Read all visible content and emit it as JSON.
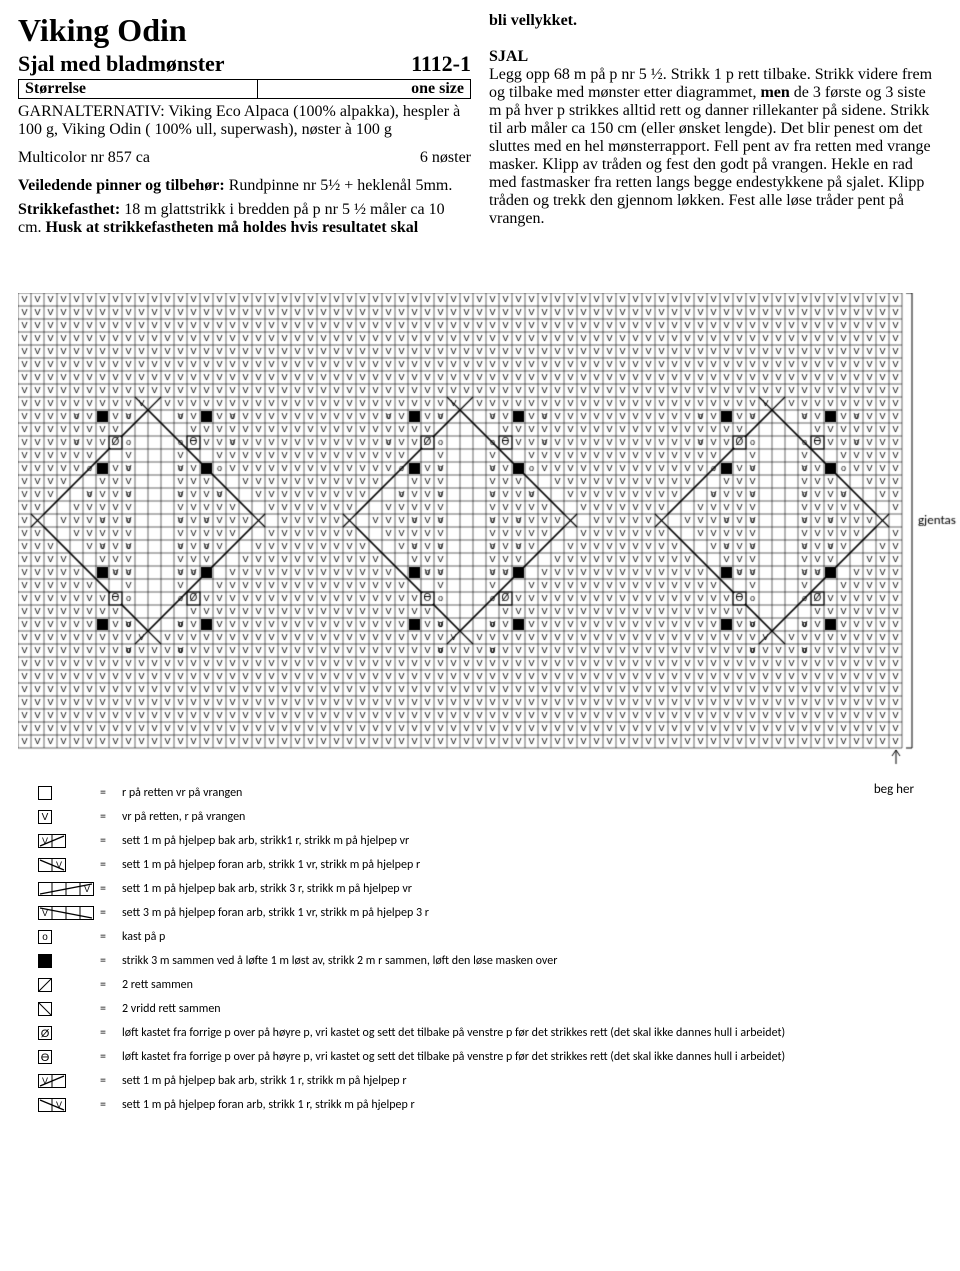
{
  "header": {
    "title": "Viking Odin",
    "subtitle": "Sjal med bladmønster",
    "pattern_no": "1112-1",
    "size_label": "Størrelse",
    "size_value": "one size",
    "garn": "GARNALTERNATIV: Viking Eco Alpaca (100% alpakka), hespler à 100 g, Viking Odin ( 100% ull, superwash), nøster à 100 g",
    "multicolor": "Multicolor nr 857 ca",
    "multicolor_qty": "6 nøster",
    "pinner": "Veiledende pinner og tilbehør: Rundpinne nr 5½ + heklenål 5mm.",
    "fasthet": "Strikkefasthet: 18 m glattstrikk i bredden på p nr 5 ½ måler ca 10 cm. Husk at strikkefastheten må holdes hvis resultatet skal"
  },
  "right": {
    "cont": "bli vellykket.",
    "sjal_h": "SJAL",
    "sjal_body": "Legg opp 68 m på p nr 5 ½. Strikk 1 p rett tilbake. Strikk videre frem og tilbake med mønster etter diagrammet, men de 3 første og 3 siste m på hver p strikkes alltid rett og danner rillekanter på sidene. Strikk til arb måler ca 150 cm (eller ønsket lengde). Det blir penest om det sluttes med en hel mønsterrapport. Fell pent av fra retten med vrange masker. Klipp av tråden og fest den godt på vrangen. Hekle en rad med fastmasker fra retten langs begge endestykkene på sjalet. Klipp tråden og trekk den gjennom løkken. Fest alle løse tråder pent på vrangen."
  },
  "chart": {
    "cell": 13,
    "cols": 68,
    "rows": 35,
    "label_gjentas": "gjentas",
    "label_beg": "beg her",
    "grid_color": "#000000",
    "v_char": "V",
    "symbols": {
      "o": "o",
      "otheta": "ϴ",
      "oslash": "Ø"
    }
  },
  "legend": [
    {
      "sym": "blank",
      "text": "r på retten vr på vrangen"
    },
    {
      "sym": "v",
      "text": "vr på retten, r på vrangen"
    },
    {
      "sym": "cable2a",
      "text": "sett 1 m på hjelpep bak arb, strikk1 r, strikk m på hjelpep vr"
    },
    {
      "sym": "cable2b",
      "text": "sett 1 m på hjelpep foran arb, strikk 1 vr, strikk m på hjelpep r"
    },
    {
      "sym": "cable4a",
      "text": "sett 1 m på hjelpep bak arb, strikk 3 r, strikk m på hjelpep vr"
    },
    {
      "sym": "cable4b",
      "text": "sett 3 m på hjelpep foran arb, strikk 1 vr, strikk m på hjelpep 3 r"
    },
    {
      "sym": "o",
      "text": "kast på p"
    },
    {
      "sym": "black",
      "text": "strikk 3 m sammen ved å løfte 1 m løst av, strikk 2 m r sammen, løft den løse masken over"
    },
    {
      "sym": "diag1",
      "text": "2 rett sammen"
    },
    {
      "sym": "diag2",
      "text": "2 vridd rett sammen"
    },
    {
      "sym": "oslash",
      "text": "løft kastet fra forrige p over på høyre p, vri kastet og sett det tilbake på venstre p før det strikkes rett (det skal ikke dannes hull i arbeidet)"
    },
    {
      "sym": "otheta",
      "text": "løft kastet fra forrige p over på høyre p, vri kastet og sett det tilbake på venstre p før det strikkes rett (det skal ikke dannes hull i arbeidet)"
    },
    {
      "sym": "cable2c",
      "text": "sett 1 m på hjelpep bak arb, strikk 1 r, strikk m på hjelpep r"
    },
    {
      "sym": "cable2d",
      "text": "sett 1 m på hjelpep foran arb, strikk 1 r, strikk m på hjelpep r"
    }
  ],
  "beg_her": "beg her"
}
